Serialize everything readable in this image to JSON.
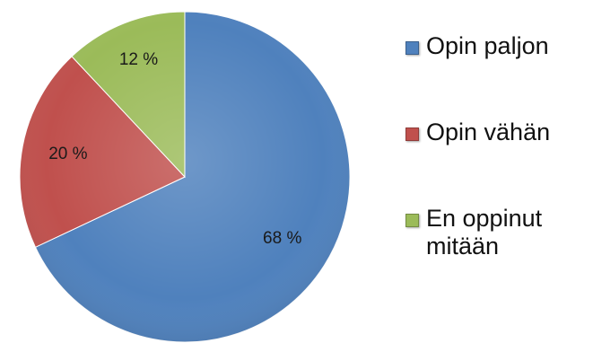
{
  "chart_data": {
    "type": "pie",
    "title": "",
    "slices": [
      {
        "label": "Opin paljon",
        "value": 68,
        "display": "68 %",
        "color": "#4f81bd"
      },
      {
        "label": "Opin vähän",
        "value": 20,
        "display": "20 %",
        "color": "#c0504d"
      },
      {
        "label": "En oppinut\nmitään",
        "value": 12,
        "display": "12 %",
        "color": "#9bbb59"
      }
    ],
    "start": "12 o'clock",
    "direction": "clockwise",
    "legend_position": "right"
  },
  "legend": {
    "items": [
      {
        "label": "Opin paljon",
        "color": "#4f81bd"
      },
      {
        "label": "Opin vähän",
        "color": "#c0504d"
      },
      {
        "label": "En oppinut\nmitään",
        "color": "#9bbb59"
      }
    ]
  }
}
